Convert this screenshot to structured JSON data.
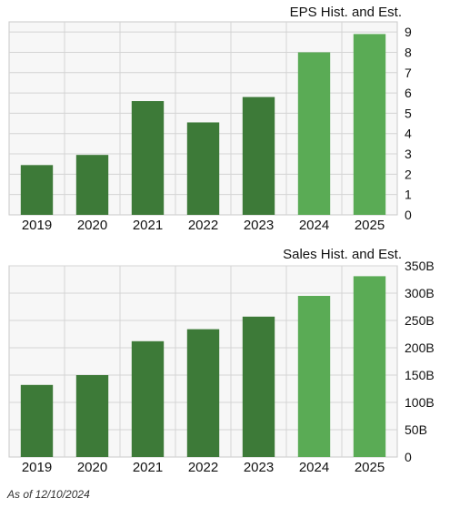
{
  "chart_data": [
    {
      "type": "bar",
      "title": "EPS Hist. and Est.",
      "categories": [
        "2019",
        "2020",
        "2021",
        "2022",
        "2023",
        "2024",
        "2025"
      ],
      "values": [
        2.45,
        2.95,
        5.6,
        4.55,
        5.8,
        8.0,
        8.9
      ],
      "estimate_flags": [
        false,
        false,
        false,
        false,
        false,
        true,
        true
      ],
      "ylim": [
        0,
        9.5
      ],
      "ytick_values": [
        0,
        1,
        2,
        3,
        4,
        5,
        6,
        7,
        8,
        9
      ],
      "ytick_labels": [
        "0",
        "1",
        "2",
        "3",
        "4",
        "5",
        "6",
        "7",
        "8",
        "9"
      ],
      "grid": true,
      "xlabel": "",
      "ylabel": ""
    },
    {
      "type": "bar",
      "title": "Sales Hist. and Est.",
      "categories": [
        "2019",
        "2020",
        "2021",
        "2022",
        "2023",
        "2024",
        "2025"
      ],
      "values": [
        132,
        150,
        212,
        234,
        257,
        295,
        331
      ],
      "estimate_flags": [
        false,
        false,
        false,
        false,
        false,
        true,
        true
      ],
      "ylim": [
        0,
        350
      ],
      "ytick_values": [
        0,
        50,
        100,
        150,
        200,
        250,
        300,
        350
      ],
      "ytick_labels": [
        "0",
        "50B",
        "100B",
        "150B",
        "200B",
        "250B",
        "300B",
        "350B"
      ],
      "grid": true,
      "xlabel": "",
      "ylabel": ""
    }
  ],
  "colors": {
    "historical_bar": "#3d7a38",
    "estimate_bar": "#5aab55",
    "plot_background": "#f7f7f7",
    "grid": "#d4d4d4"
  },
  "footnote": "As of 12/10/2024"
}
